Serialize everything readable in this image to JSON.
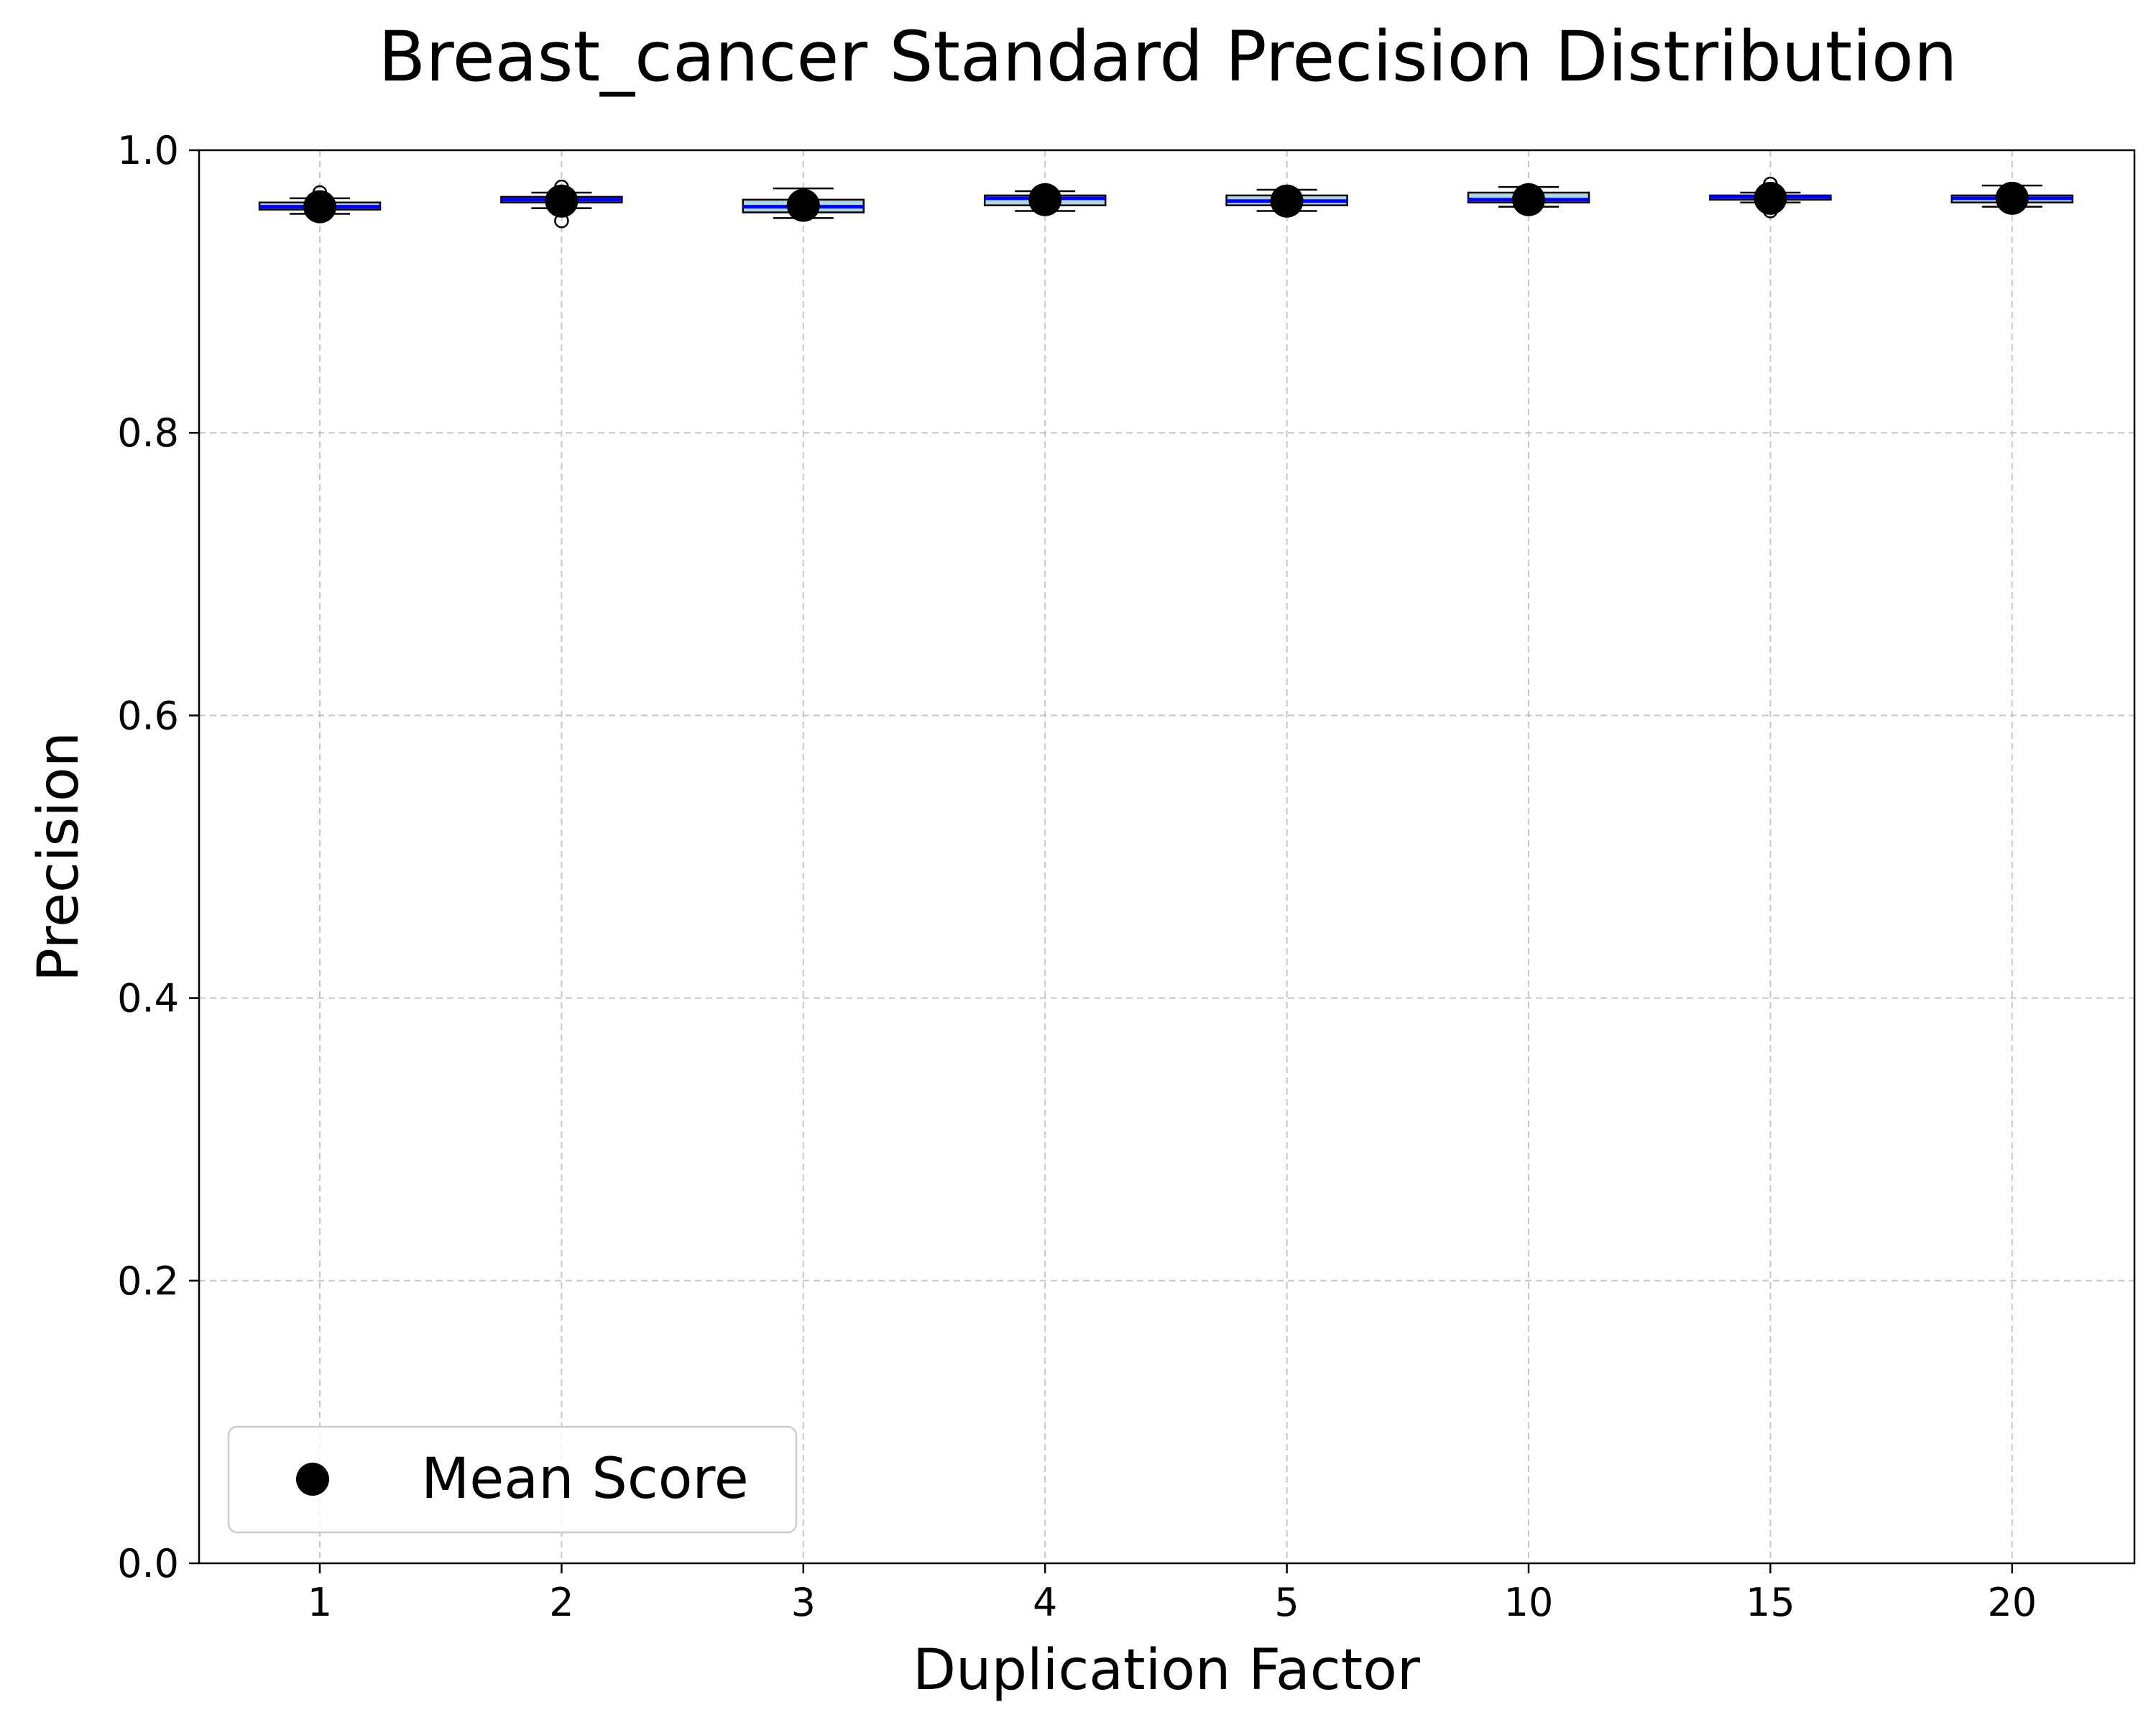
{
  "chart_data": {
    "type": "box",
    "title": "Breast_cancer Standard Precision Distribution",
    "xlabel": "Duplication Factor",
    "ylabel": "Precision",
    "ylim": [
      0.0,
      1.0
    ],
    "yticks": [
      "0.0",
      "0.2",
      "0.4",
      "0.6",
      "0.8",
      "1.0"
    ],
    "categories": [
      "1",
      "2",
      "3",
      "4",
      "5",
      "10",
      "15",
      "20"
    ],
    "boxes": [
      {
        "whisker_low": 0.955,
        "q1": 0.958,
        "median": 0.96,
        "q3": 0.963,
        "whisker_high": 0.966,
        "outliers": [
          0.97
        ],
        "mean": 0.96
      },
      {
        "whisker_low": 0.959,
        "q1": 0.963,
        "median": 0.965,
        "q3": 0.967,
        "whisker_high": 0.97,
        "outliers": [
          0.95,
          0.974
        ],
        "mean": 0.964
      },
      {
        "whisker_low": 0.952,
        "q1": 0.956,
        "median": 0.96,
        "q3": 0.965,
        "whisker_high": 0.973,
        "outliers": [],
        "mean": 0.961
      },
      {
        "whisker_low": 0.957,
        "q1": 0.961,
        "median": 0.966,
        "q3": 0.968,
        "whisker_high": 0.971,
        "outliers": [],
        "mean": 0.965
      },
      {
        "whisker_low": 0.957,
        "q1": 0.961,
        "median": 0.964,
        "q3": 0.968,
        "whisker_high": 0.972,
        "outliers": [],
        "mean": 0.964
      },
      {
        "whisker_low": 0.96,
        "q1": 0.963,
        "median": 0.965,
        "q3": 0.97,
        "whisker_high": 0.974,
        "outliers": [],
        "mean": 0.965
      },
      {
        "whisker_low": 0.963,
        "q1": 0.965,
        "median": 0.967,
        "q3": 0.968,
        "whisker_high": 0.97,
        "outliers": [
          0.957,
          0.976
        ],
        "mean": 0.966
      },
      {
        "whisker_low": 0.96,
        "q1": 0.963,
        "median": 0.966,
        "q3": 0.968,
        "whisker_high": 0.975,
        "outliers": [],
        "mean": 0.966
      }
    ],
    "legend": {
      "label": "Mean Score",
      "placement": "lower-left"
    },
    "grid": true,
    "colors": {
      "median": "#0000ff",
      "box_fill": "#add8e6",
      "box_edge": "#000000",
      "mean": "#000000",
      "grid": "#b0b0b0"
    }
  }
}
